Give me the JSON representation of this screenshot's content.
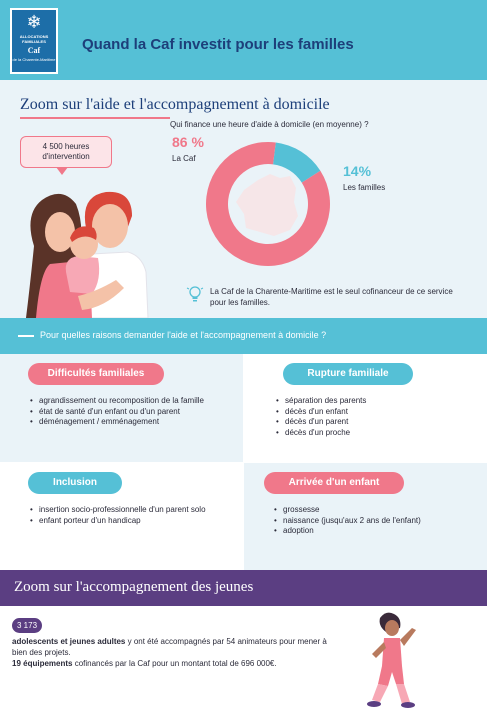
{
  "logo": {
    "line1": "ALLOCATIONS FAMILIALES",
    "line2": "Caf",
    "line3": "de la Charente-Maritime"
  },
  "header": {
    "title": "Quand la Caf investit pour les familles"
  },
  "domicile": {
    "title": "Zoom sur l'aide et l'accompagnement à domicile",
    "hours_bubble": "4 500 heures d'intervention",
    "question": "Qui finance une heure d'aide à domicile (en moyenne) ?",
    "caf_pct": "86 %",
    "caf_label": "La Caf",
    "family_pct": "14%",
    "family_label": "Les familles",
    "note": "La Caf de la Charente-Maritime est le seul cofinanceur de ce service pour les familles."
  },
  "chart_data": {
    "type": "pie",
    "categories": [
      "La Caf",
      "Les familles"
    ],
    "values": [
      86,
      14
    ],
    "colors": [
      "#f0788a",
      "#55c0d6"
    ],
    "title": "Qui finance une heure d'aide à domicile (en moyenne) ?"
  },
  "reasons": {
    "title": "Pour quelles raisons demander l'aide et l'accompagnement à domicile ?",
    "cards": [
      {
        "title": "Difficultés familiales",
        "items": [
          "agrandissement ou recomposition de la famille",
          "état de santé d'un enfant ou d'un parent",
          "déménagement / emménagement"
        ]
      },
      {
        "title": "Rupture familiale",
        "items": [
          "séparation des parents",
          "décès d'un enfant",
          "décès d'un parent",
          "décès d'un proche"
        ]
      },
      {
        "title": "Inclusion",
        "items": [
          "insertion socio-professionnelle d'un parent solo",
          "enfant porteur d'un handicap"
        ]
      },
      {
        "title": "Arrivée d'un enfant",
        "items": [
          "grossesse",
          "naissance (jusqu'aux 2 ans de l'enfant)",
          "adoption"
        ]
      }
    ]
  },
  "youth": {
    "title": "Zoom sur l'accompagnement des jeunes",
    "count": "3 173",
    "bold1": "adolescents et jeunes adultes",
    "text1": " y ont été accompagnés par 54 animateurs pour mener à bien des projets.",
    "bold2": "19 équipements",
    "text2": " cofinancés par la Caf pour un montant total de 696 000€."
  },
  "colors": {
    "accent_pink": "#f0788a",
    "accent_cyan": "#55c0d6",
    "dark_blue": "#1d3f7a",
    "purple": "#5b3e82"
  }
}
